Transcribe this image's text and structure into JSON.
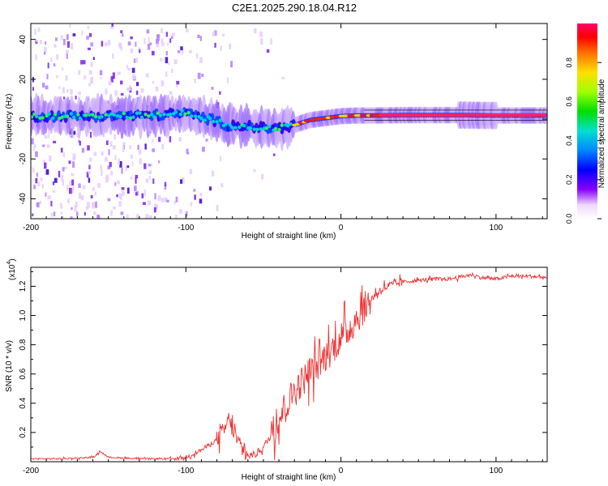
{
  "figure_title": "C2E1.2025.290.18.04.R12",
  "chart_data": [
    {
      "type": "heatmap",
      "title": "C2E1.2025.290.18.04.R12",
      "xlabel": "Height of straight line (km)",
      "ylabel": "Frequency (Hz)",
      "xlim": [
        -200,
        133
      ],
      "ylim": [
        -50,
        48
      ],
      "x_ticks": [
        -200,
        -100,
        0,
        100
      ],
      "y_ticks": [
        -40,
        -20,
        0,
        20,
        40
      ],
      "ridge_frequency": {
        "x": [
          -200,
          -150,
          -120,
          -100,
          -90,
          -80,
          -75,
          -70,
          -60,
          -50,
          -40,
          -30,
          -20,
          -10,
          0,
          10,
          20,
          40,
          60,
          80,
          100,
          120,
          133
        ],
        "y": [
          1.5,
          1.5,
          2,
          3,
          1,
          -1,
          -3,
          -3,
          -3.5,
          -4.5,
          -4.5,
          -3,
          -0.5,
          0.5,
          1.5,
          1.8,
          1.8,
          2,
          2,
          2,
          1.8,
          1.8,
          1.8
        ]
      },
      "colorbar": {
        "label": "Normalized spectral amplitude",
        "range": [
          0,
          1
        ],
        "ticks": [
          0.0,
          0.2,
          0.4,
          0.6,
          0.8
        ],
        "tick_labels": [
          "0.0",
          "0.2",
          "0.4",
          "0.6",
          "0.8"
        ]
      }
    },
    {
      "type": "line",
      "xlabel": "Height of straight line (km)",
      "ylabel": "SNR (10 * v/v)",
      "multiplier_label": "(x10",
      "multiplier_exponent": "4",
      "xlim": [
        -200,
        133
      ],
      "ylim": [
        0,
        1.33
      ],
      "x_ticks": [
        -200,
        -100,
        0,
        100
      ],
      "y_ticks": [
        0.2,
        0.4,
        0.6,
        0.8,
        1.0,
        1.2
      ],
      "y_tick_labels": [
        "0.2",
        "0.4",
        "0.6",
        "0.8",
        "1.0",
        "1.2"
      ],
      "series": [
        {
          "name": "SNR",
          "color": "#ee3333",
          "x": [
            -200,
            -180,
            -160,
            -155,
            -150,
            -130,
            -110,
            -100,
            -90,
            -80,
            -75,
            -72,
            -70,
            -65,
            -60,
            -55,
            -50,
            -45,
            -40,
            -35,
            -30,
            -25,
            -20,
            -15,
            -10,
            -5,
            0,
            5,
            10,
            15,
            20,
            25,
            30,
            40,
            50,
            60,
            70,
            80,
            85,
            90,
            100,
            110,
            120,
            133
          ],
          "y": [
            0.02,
            0.02,
            0.03,
            0.07,
            0.03,
            0.02,
            0.02,
            0.03,
            0.08,
            0.15,
            0.22,
            0.3,
            0.22,
            0.1,
            0.04,
            0.05,
            0.1,
            0.18,
            0.3,
            0.4,
            0.48,
            0.55,
            0.62,
            0.66,
            0.72,
            0.78,
            0.85,
            0.9,
            0.98,
            1.05,
            1.12,
            1.17,
            1.2,
            1.23,
            1.24,
            1.25,
            1.25,
            1.27,
            1.28,
            1.26,
            1.25,
            1.27,
            1.27,
            1.26
          ]
        }
      ]
    }
  ]
}
